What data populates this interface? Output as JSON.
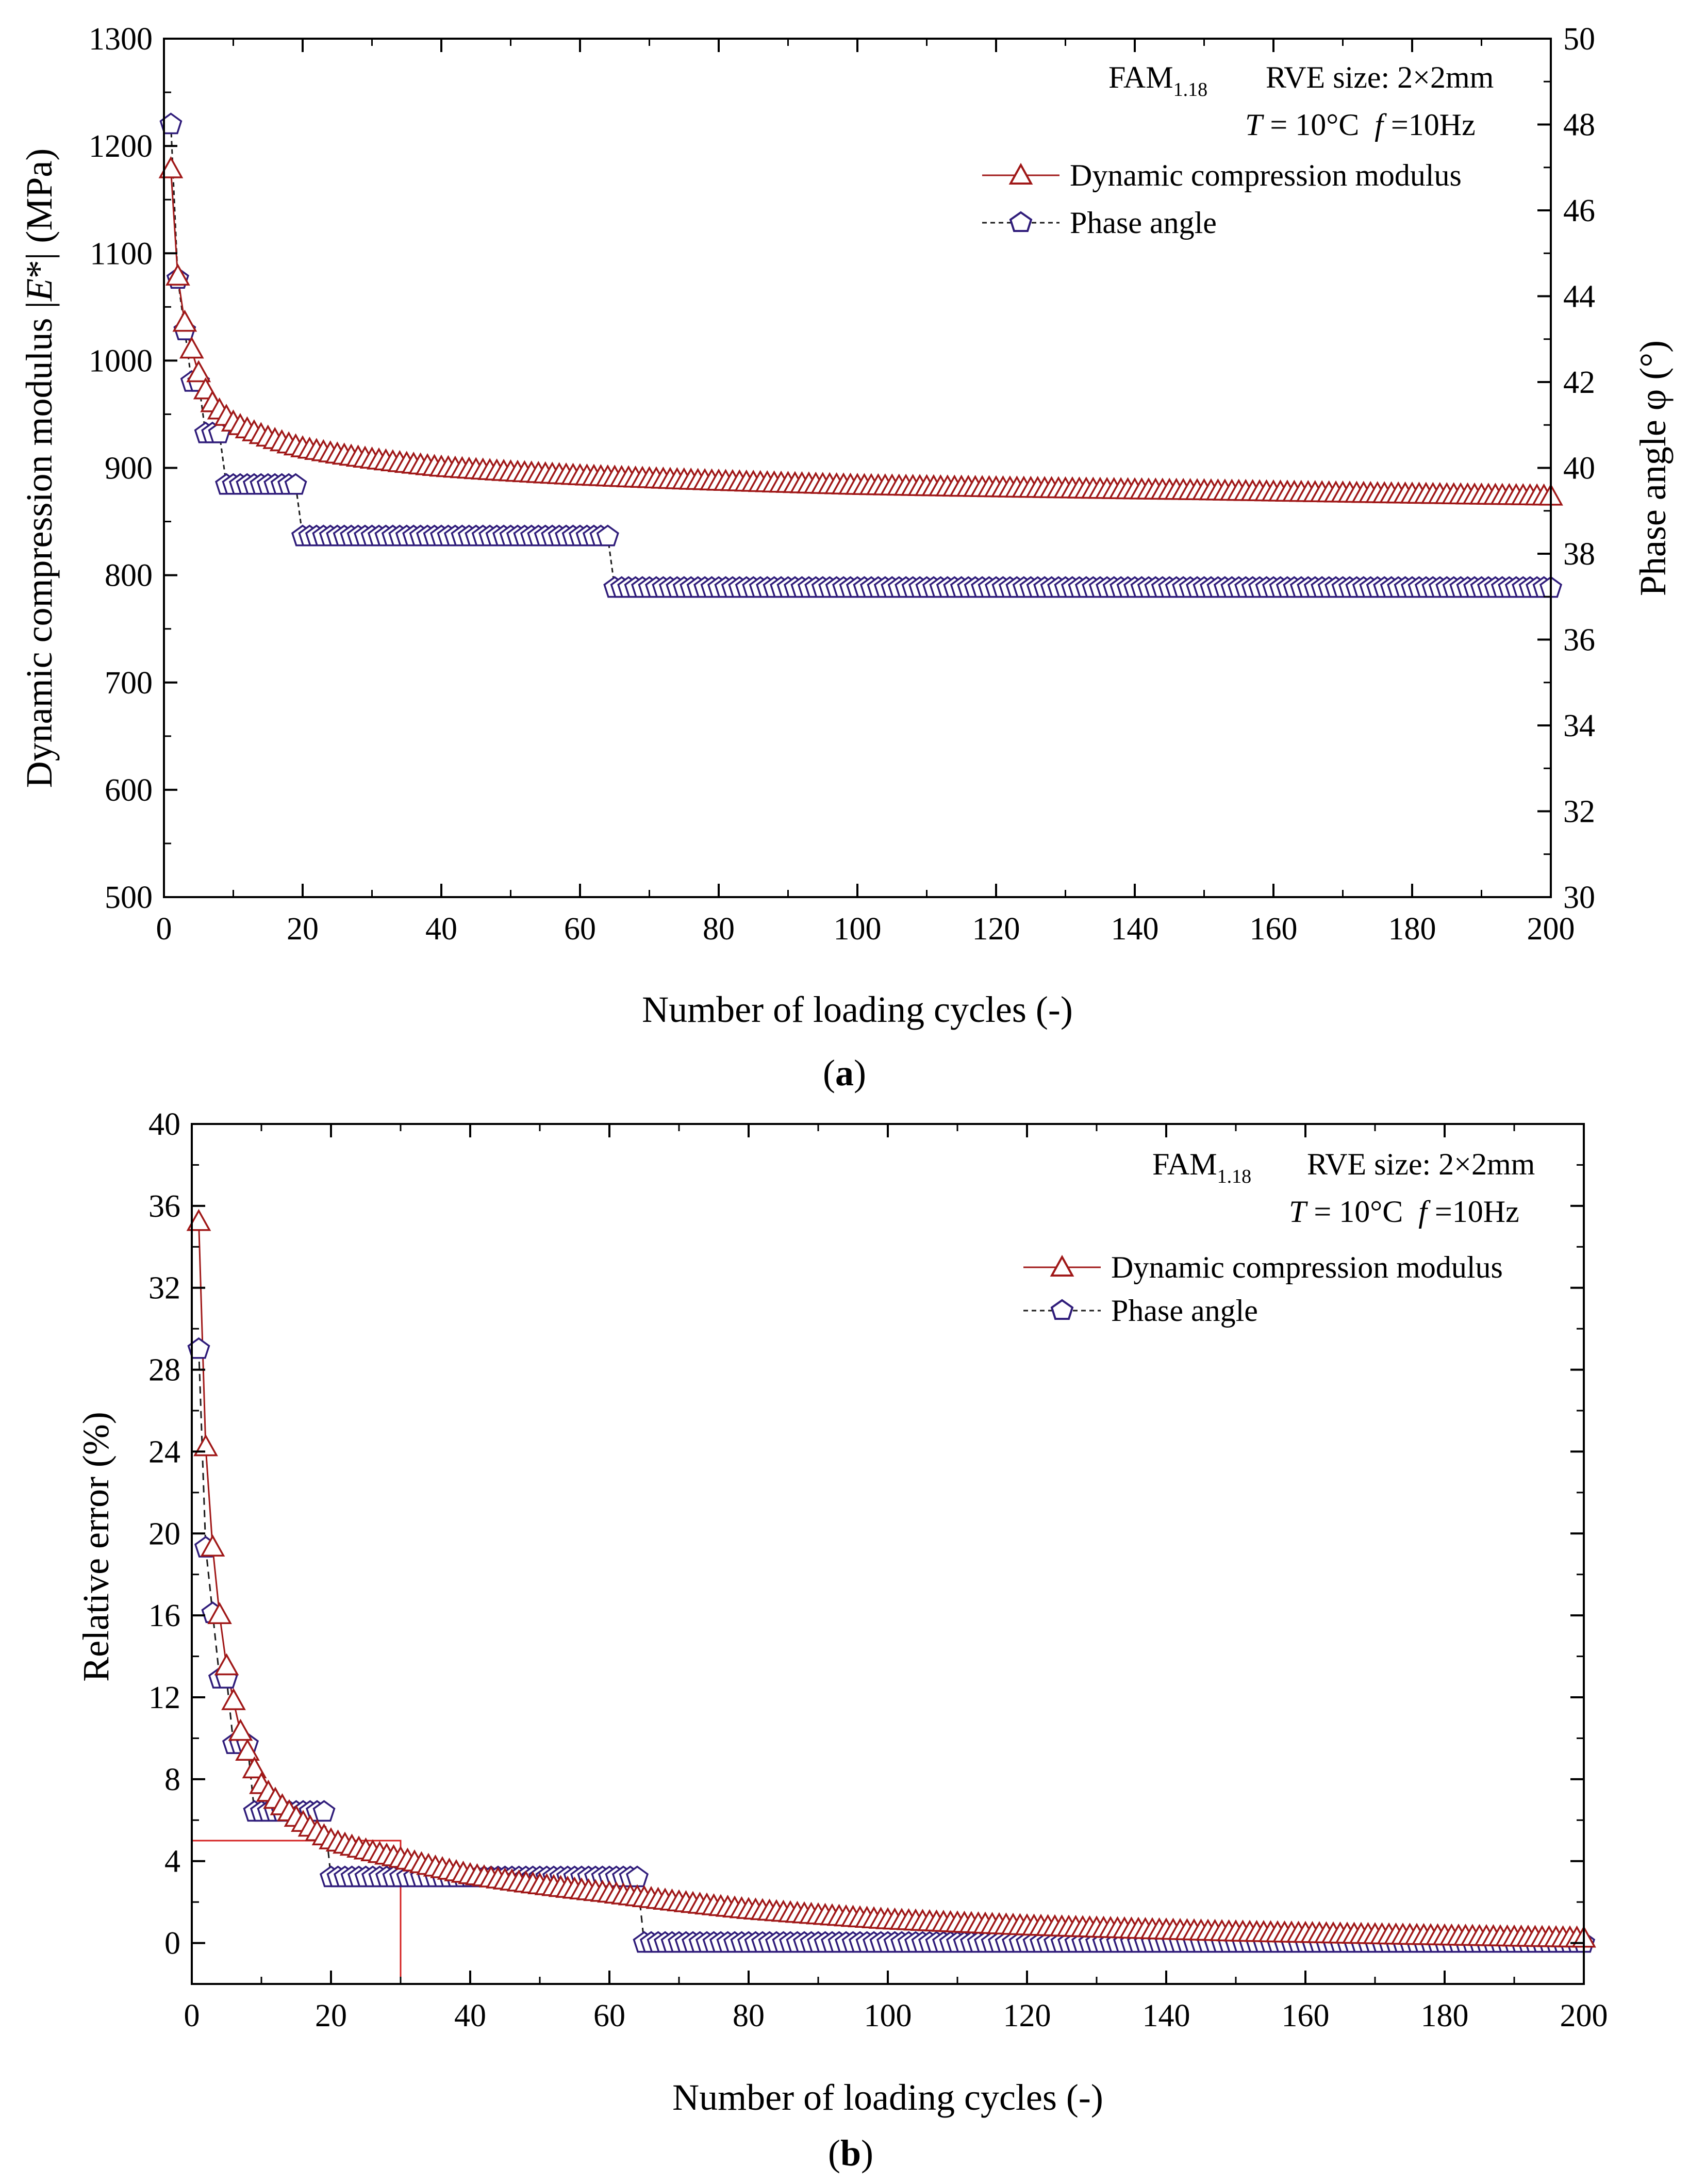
{
  "colors": {
    "modulus": "#a01818",
    "phase_marker": "#2f1c7a",
    "phase_line": "#1a1a1a",
    "axis": "#000000",
    "threshold": "#d42020"
  },
  "chart_data": [
    {
      "type": "line",
      "panel": "a",
      "caption_label": "a",
      "title": "",
      "xlabel": "Number of loading cycles (-)",
      "ylabel_left": "Dynamic compression modulus |E*| (MPa)",
      "ylabel_left_parts": [
        "Dynamic compression modulus |",
        "E",
        "*| (MPa)"
      ],
      "ylabel_right": "Phase angle φ (°)",
      "xlim": [
        0,
        200
      ],
      "ylim_left": [
        500,
        1300
      ],
      "ylim_right": [
        30,
        50
      ],
      "x_ticks": [
        "0",
        "20",
        "40",
        "60",
        "80",
        "100",
        "120",
        "140",
        "160",
        "180",
        "200"
      ],
      "y_left_ticks": [
        "500",
        "600",
        "700",
        "800",
        "900",
        "1000",
        "1100",
        "1200",
        "1300"
      ],
      "y_right_ticks": [
        "30",
        "32",
        "34",
        "36",
        "38",
        "40",
        "42",
        "44",
        "46",
        "48",
        "50"
      ],
      "annotation": {
        "material": "FAM",
        "material_sub": "1.18",
        "rve": "RVE size: 2×2mm",
        "temp_var": "T",
        "temp_value": " = 10°C",
        "freq_var": "f",
        "freq_value": " =10Hz"
      },
      "legend": [
        "Dynamic compression modulus",
        "Phase angle"
      ],
      "series": [
        {
          "name": "Dynamic compression modulus",
          "axis": "left",
          "x_range": [
            1,
            200
          ],
          "model": "power-law",
          "sample_points": [
            [
              1,
              1178
            ],
            [
              2,
              1078
            ],
            [
              3,
              1035
            ],
            [
              4,
              1010
            ],
            [
              5,
              988
            ],
            [
              6,
              972
            ],
            [
              7,
              960
            ],
            [
              10,
              942
            ],
            [
              20,
              918
            ],
            [
              40,
              900
            ],
            [
              60,
              892
            ],
            [
              100,
              883
            ],
            [
              150,
              878
            ],
            [
              200,
              873
            ]
          ]
        },
        {
          "name": "Phase angle",
          "axis": "right",
          "steps": [
            [
              1,
              48.0
            ],
            [
              2,
              44.4
            ],
            [
              3,
              43.2
            ],
            [
              4,
              42.0
            ],
            [
              5,
              42.0
            ],
            [
              6,
              40.8
            ],
            [
              7,
              40.8
            ],
            [
              8,
              40.8
            ],
            [
              9,
              39.6
            ],
            [
              14,
              39.6
            ],
            [
              15,
              39.6
            ],
            [
              19,
              39.6
            ],
            [
              20,
              38.4
            ],
            [
              64,
              38.4
            ],
            [
              65,
              37.2
            ],
            [
              200,
              37.2
            ]
          ]
        }
      ]
    },
    {
      "type": "line",
      "panel": "b",
      "caption_label": "b",
      "title": "",
      "xlabel": "Number of loading cycles (-)",
      "ylabel": "Relative error (%)",
      "xlim": [
        0,
        200
      ],
      "ylim": [
        -2,
        40
      ],
      "x_ticks": [
        "0",
        "20",
        "40",
        "60",
        "80",
        "100",
        "120",
        "140",
        "160",
        "180",
        "200"
      ],
      "y_ticks": [
        "0",
        "4",
        "8",
        "12",
        "16",
        "20",
        "24",
        "28",
        "32",
        "36",
        "40"
      ],
      "annotation": {
        "material": "FAM",
        "material_sub": "1.18",
        "rve": "RVE size: 2×2mm",
        "temp_var": "T",
        "temp_value": " = 10°C",
        "freq_var": "f",
        "freq_value": " =10Hz"
      },
      "legend": [
        "Dynamic compression modulus",
        "Phase angle"
      ],
      "threshold": {
        "error": 5,
        "cycles": 30
      },
      "series": [
        {
          "name": "Dynamic compression modulus",
          "sample_points": [
            [
              1,
              35.2
            ],
            [
              2,
              24.2
            ],
            [
              3,
              19.3
            ],
            [
              4,
              16.0
            ],
            [
              5,
              13.5
            ],
            [
              6,
              11.8
            ],
            [
              7,
              10.3
            ],
            [
              10,
              7.7
            ],
            [
              15,
              6.1
            ],
            [
              20,
              5.0
            ],
            [
              30,
              4.1
            ],
            [
              40,
              3.3
            ],
            [
              60,
              2.4
            ],
            [
              80,
              1.6
            ],
            [
              100,
              1.1
            ],
            [
              120,
              0.8
            ],
            [
              150,
              0.5
            ],
            [
              200,
              0.2
            ]
          ]
        },
        {
          "name": "Phase angle",
          "steps": [
            [
              1,
              29.0
            ],
            [
              2,
              19.3
            ],
            [
              3,
              16.1
            ],
            [
              4,
              12.9
            ],
            [
              5,
              12.9
            ],
            [
              6,
              9.7
            ],
            [
              7,
              9.7
            ],
            [
              8,
              9.7
            ],
            [
              9,
              6.4
            ],
            [
              19,
              6.4
            ],
            [
              20,
              3.2
            ],
            [
              64,
              3.2
            ],
            [
              65,
              0.0
            ],
            [
              200,
              0.0
            ]
          ]
        }
      ]
    }
  ]
}
